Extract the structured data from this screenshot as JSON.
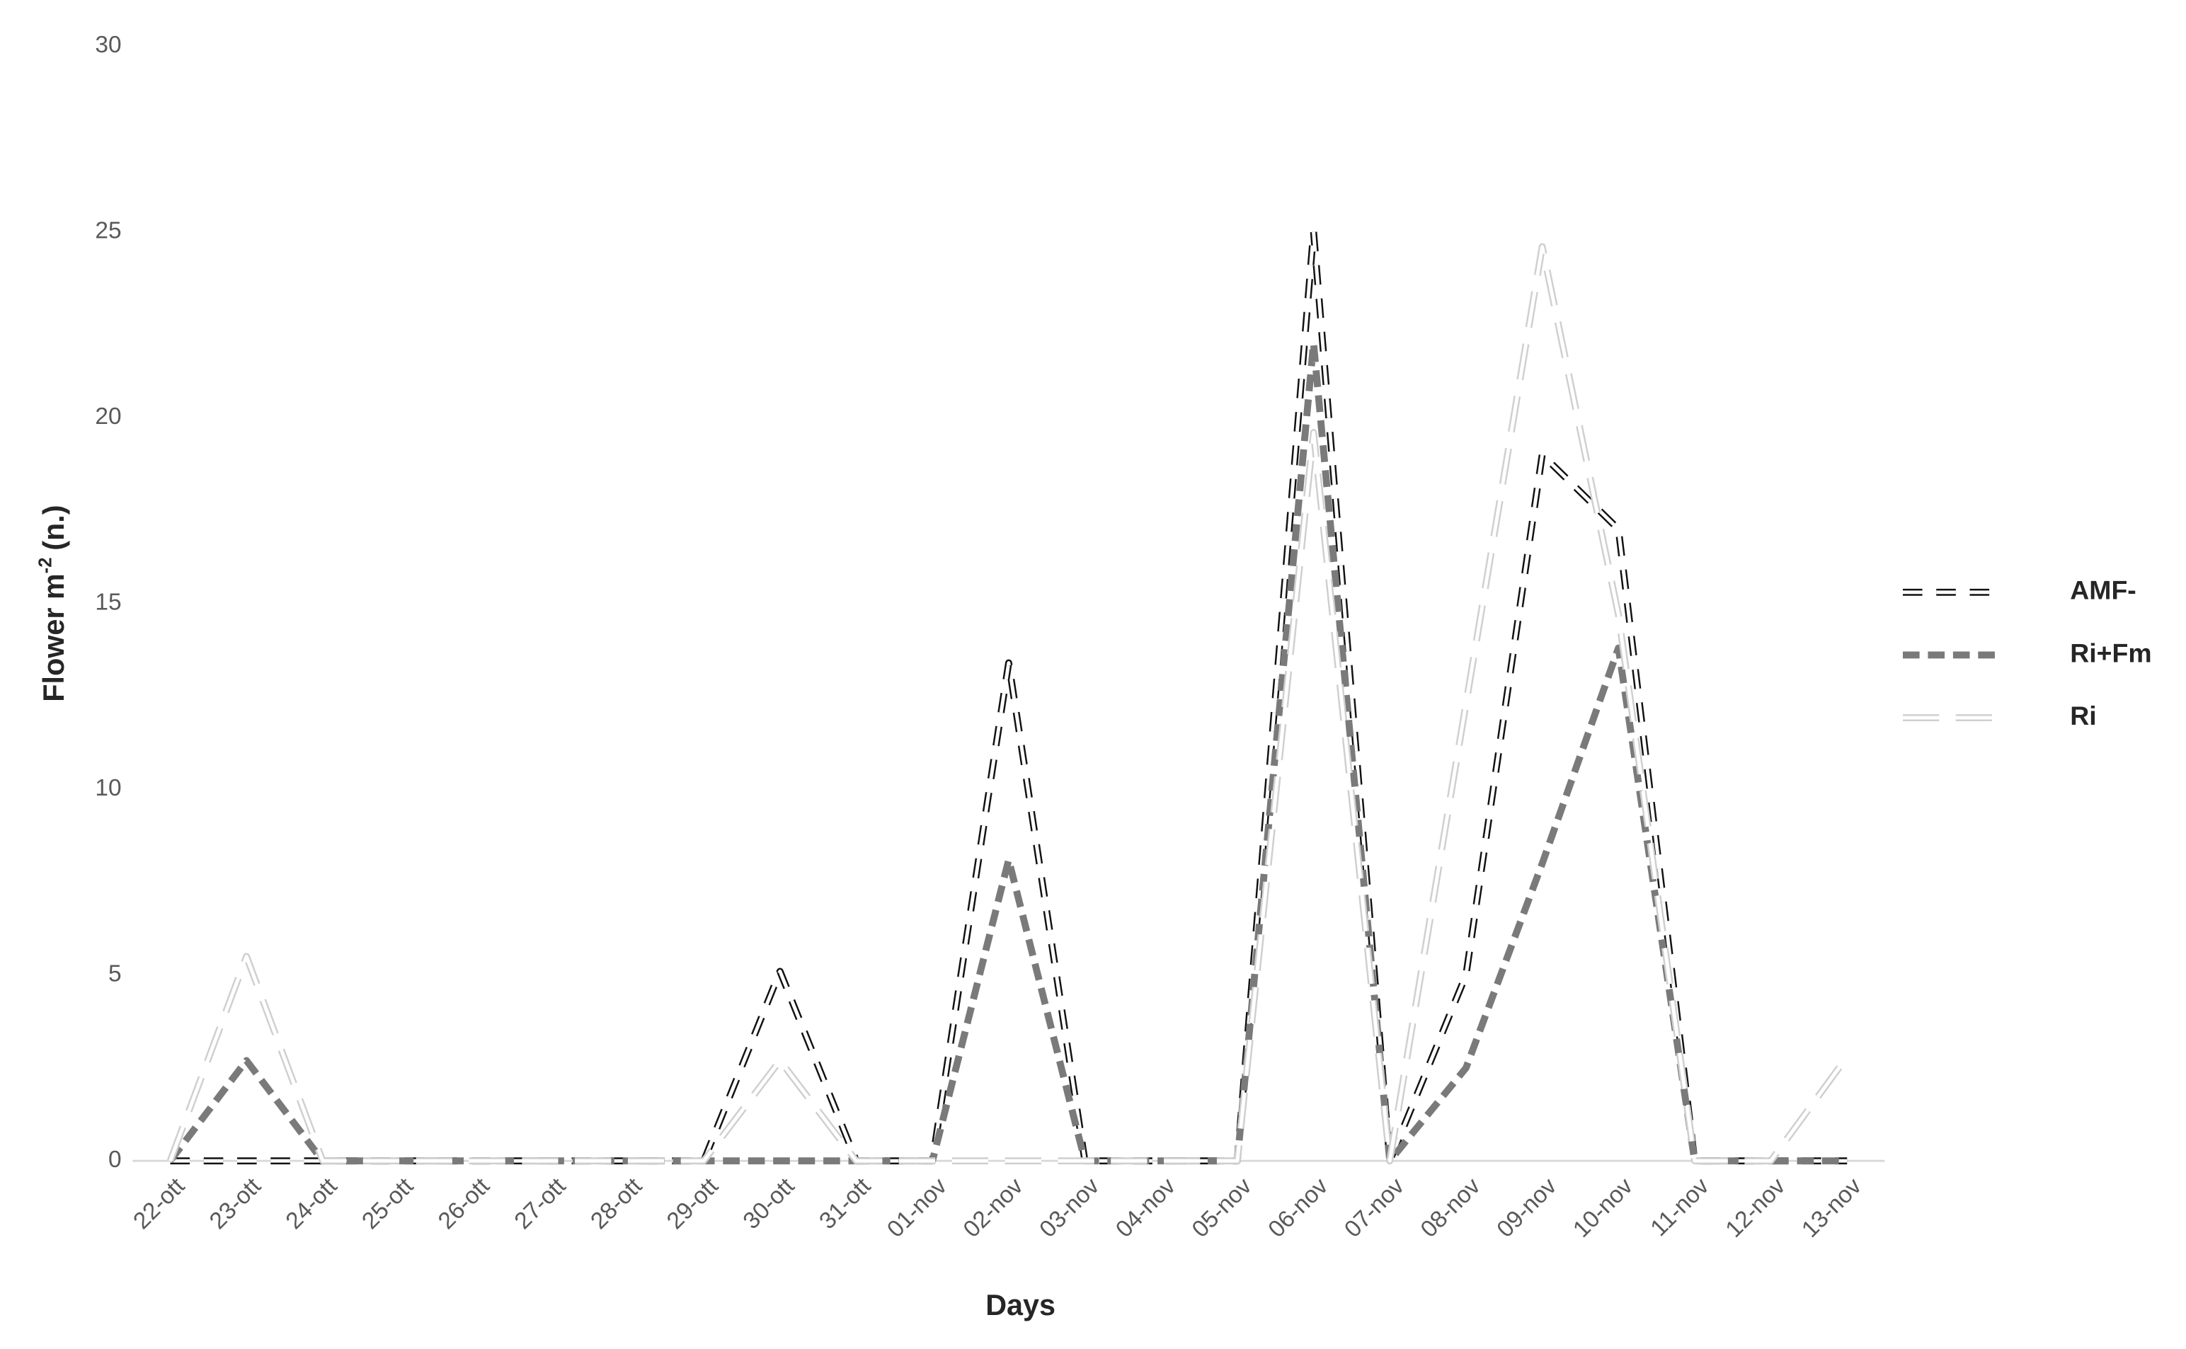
{
  "chart_data": {
    "type": "line",
    "x_label": "Days",
    "y_label": {
      "main": "Flower m",
      "sup": "-2",
      "unit": "(n.)"
    },
    "categories": [
      "22-ott",
      "23-ott",
      "24-ott",
      "25-ott",
      "26-ott",
      "27-ott",
      "28-ott",
      "29-ott",
      "30-ott",
      "31-ott",
      "01-nov",
      "02-nov",
      "03-nov",
      "04-nov",
      "05-nov",
      "06-nov",
      "07-nov",
      "08-nov",
      "09-nov",
      "10-nov",
      "11-nov",
      "12-nov",
      "13-nov"
    ],
    "series": [
      {
        "name": "AMF-",
        "color": "#111111",
        "values": [
          0,
          0,
          0,
          0,
          0,
          0,
          0,
          0,
          5.1,
          0,
          0,
          13.4,
          0,
          0,
          0,
          25,
          0,
          5,
          19,
          17,
          0,
          0,
          0
        ]
      },
      {
        "name": "Ri+Fm",
        "color": "#7a7a7a",
        "values": [
          0,
          2.7,
          0,
          0,
          0,
          0,
          0,
          0,
          0,
          0,
          0,
          8.1,
          0,
          0,
          0,
          22,
          0,
          2.5,
          8,
          13.8,
          0,
          0,
          0
        ]
      },
      {
        "name": "Ri",
        "color": "#cfcfcf",
        "values": [
          0,
          5.5,
          0,
          0,
          0,
          0,
          0,
          0,
          2.7,
          0,
          0,
          0,
          0,
          0,
          0,
          19.6,
          0,
          12.3,
          24.6,
          14.7,
          0,
          0,
          2.8
        ]
      }
    ],
    "ylim": [
      0,
      30
    ],
    "yticks": [
      0,
      5,
      10,
      15,
      20,
      25,
      30
    ],
    "legend": "right"
  }
}
